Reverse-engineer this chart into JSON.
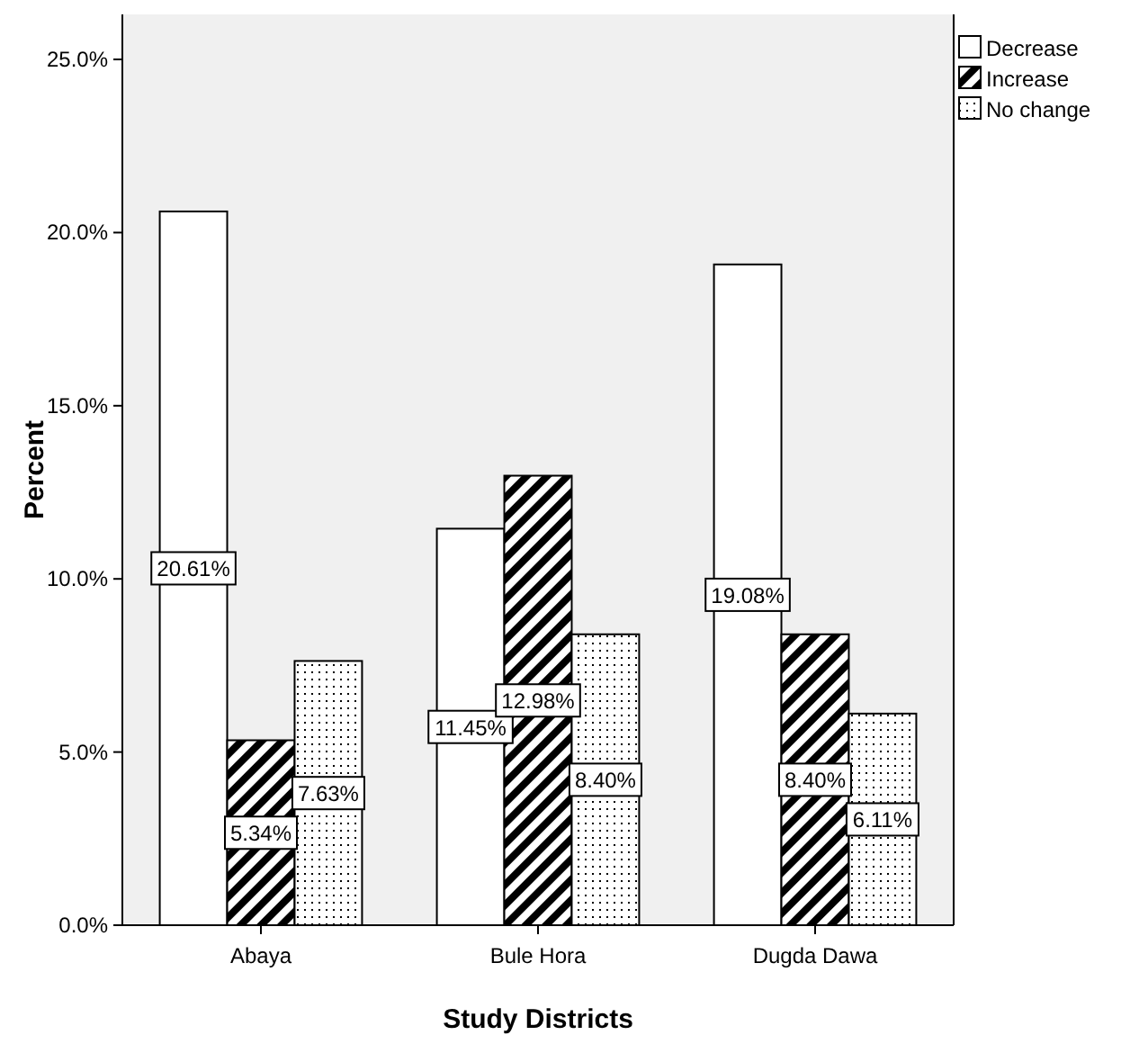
{
  "chart_data": {
    "type": "bar",
    "xlabel": "Study Districts",
    "ylabel": "Percent",
    "categories": [
      "Abaya",
      "Bule Hora",
      "Dugda Dawa"
    ],
    "series": [
      {
        "name": "Decrease",
        "color": "#ffffff",
        "values": [
          20.61,
          11.45,
          19.08
        ],
        "value_labels": [
          "20.61%",
          "11.45%",
          "19.08%"
        ]
      },
      {
        "name": "Increase",
        "color": "#000000",
        "values": [
          5.34,
          12.98,
          8.4
        ],
        "value_labels": [
          "5.34%",
          "12.98%",
          "8.40%"
        ]
      },
      {
        "name": "No change",
        "color": "#000000",
        "values": [
          7.63,
          8.4,
          6.11
        ],
        "value_labels": [
          "7.63%",
          "8.40%",
          "6.11%"
        ]
      }
    ],
    "ylim": [
      0,
      26.3
    ],
    "yticks": [
      {
        "value": 0,
        "label": "0.0%"
      },
      {
        "value": 5,
        "label": "5.0%"
      },
      {
        "value": 10,
        "label": "10.0%"
      },
      {
        "value": 15,
        "label": "15.0%"
      },
      {
        "value": 20,
        "label": "20.0%"
      },
      {
        "value": 25,
        "label": "25.0%"
      }
    ],
    "grid": false,
    "legend": "top right"
  }
}
